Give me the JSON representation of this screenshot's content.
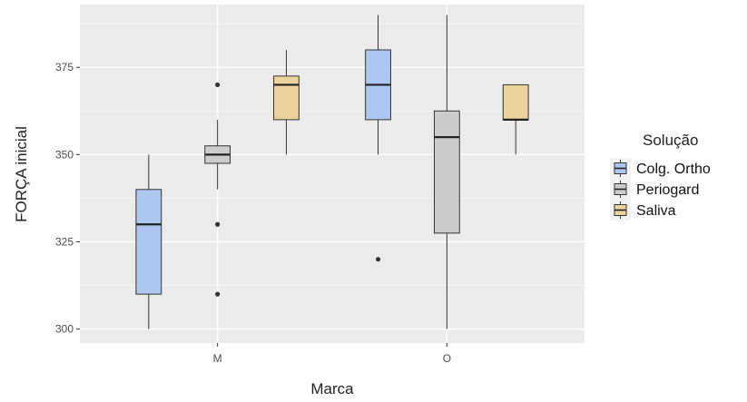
{
  "chart_data": {
    "type": "boxplot",
    "xlabel": "Marca",
    "ylabel": "FORÇA inicial",
    "categories": [
      "M",
      "O"
    ],
    "ylim": [
      296,
      393
    ],
    "yticks": [
      300,
      325,
      350,
      375
    ],
    "grid": true,
    "legend": {
      "title": "Solução",
      "position": "right"
    },
    "series": [
      {
        "name": "Colg. Ortho",
        "color": "#aec7f0",
        "boxes": [
          {
            "category": "M",
            "min": 300,
            "q1": 310,
            "median": 330,
            "q3": 340,
            "max": 350,
            "outliers": []
          },
          {
            "category": "O",
            "min": 350,
            "q1": 360,
            "median": 370,
            "q3": 380,
            "max": 390,
            "outliers": []
          }
        ]
      },
      {
        "name": "Periogard",
        "color": "#cccccc",
        "boxes": [
          {
            "category": "M",
            "min": 340,
            "q1": 347.5,
            "median": 350,
            "q3": 352.5,
            "max": 360,
            "outliers": [
              370,
              330,
              310
            ]
          },
          {
            "category": "O",
            "min": 300,
            "q1": 327.5,
            "median": 355,
            "q3": 362.5,
            "max": 390,
            "outliers": []
          }
        ]
      },
      {
        "name": "Saliva",
        "color": "#ecd39e",
        "boxes": [
          {
            "category": "M",
            "min": 350,
            "q1": 360,
            "median": 370,
            "q3": 372.5,
            "max": 380,
            "outliers": []
          },
          {
            "category": "O",
            "min": 350,
            "q1": 360,
            "median": 360,
            "q3": 370,
            "max": 370,
            "outliers": []
          }
        ]
      }
    ],
    "extra_outliers": [
      {
        "category": "O",
        "series": "Colg. Ortho",
        "value": 320
      }
    ]
  }
}
